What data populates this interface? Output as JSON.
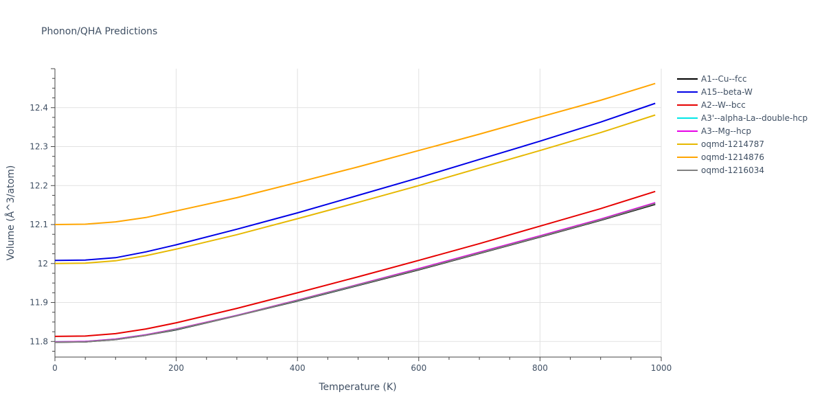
{
  "chart_data": {
    "type": "line",
    "title": "Phonon/QHA Predictions",
    "xlabel": "Temperature (K)",
    "ylabel": "Volume (Å^3/atom)",
    "xlim": [
      0,
      1000
    ],
    "ylim": [
      11.76,
      12.5
    ],
    "xticks": [
      0,
      200,
      400,
      600,
      800,
      1000
    ],
    "yticks": [
      11.8,
      11.9,
      12.0,
      12.1,
      12.2,
      12.3,
      12.4
    ],
    "xtick_labels": [
      "0",
      "200",
      "400",
      "600",
      "800",
      "1000"
    ],
    "ytick_labels": [
      "11.8",
      "11.9",
      "12",
      "12.1",
      "12.2",
      "12.3",
      "12.4"
    ],
    "grid": true,
    "legend_position": "right",
    "series": [
      {
        "name": "A1--Cu--fcc",
        "color": "#000000",
        "x": [
          0,
          50,
          100,
          150,
          200,
          300,
          400,
          500,
          600,
          700,
          800,
          900,
          990
        ],
        "y": [
          11.798,
          11.799,
          11.805,
          11.816,
          11.83,
          11.866,
          11.904,
          11.944,
          11.984,
          12.026,
          12.068,
          12.111,
          12.152
        ]
      },
      {
        "name": "A15--beta-W",
        "color": "#0000e6",
        "x": [
          0,
          50,
          100,
          150,
          200,
          300,
          400,
          500,
          600,
          700,
          800,
          900,
          990
        ],
        "y": [
          12.008,
          12.009,
          12.015,
          12.03,
          12.048,
          12.088,
          12.13,
          12.175,
          12.22,
          12.267,
          12.314,
          12.363,
          12.411
        ]
      },
      {
        "name": "A2--W--bcc",
        "color": "#e60000",
        "x": [
          0,
          50,
          100,
          150,
          200,
          300,
          400,
          500,
          600,
          700,
          800,
          900,
          990
        ],
        "y": [
          11.813,
          11.814,
          11.82,
          11.832,
          11.848,
          11.885,
          11.925,
          11.966,
          12.008,
          12.051,
          12.096,
          12.141,
          12.185
        ]
      },
      {
        "name": "A3'--alpha-La--double-hcp",
        "color": "#00e6e6",
        "x": [
          0,
          50,
          100,
          150,
          200,
          300,
          400,
          500,
          600,
          700,
          800,
          900,
          990
        ],
        "y": [
          11.799,
          11.8,
          11.806,
          11.817,
          11.831,
          11.867,
          11.905,
          11.945,
          11.986,
          12.028,
          12.07,
          12.113,
          12.155
        ]
      },
      {
        "name": "A3--Mg--hcp",
        "color": "#e600e6",
        "x": [
          0,
          50,
          100,
          150,
          200,
          300,
          400,
          500,
          600,
          700,
          800,
          900,
          990
        ],
        "y": [
          11.799,
          11.8,
          11.806,
          11.817,
          11.832,
          11.867,
          11.906,
          11.946,
          11.987,
          12.029,
          12.071,
          12.114,
          12.156
        ]
      },
      {
        "name": "oqmd-1214787",
        "color": "#e6b800",
        "x": [
          0,
          50,
          100,
          150,
          200,
          300,
          400,
          500,
          600,
          700,
          800,
          900,
          990
        ],
        "y": [
          12.0,
          12.001,
          12.007,
          12.02,
          12.037,
          12.074,
          12.115,
          12.157,
          12.2,
          12.245,
          12.29,
          12.336,
          12.381
        ]
      },
      {
        "name": "oqmd-1214876",
        "color": "#ffa500",
        "x": [
          0,
          50,
          100,
          150,
          200,
          300,
          400,
          500,
          600,
          700,
          800,
          900,
          990
        ],
        "y": [
          12.1,
          12.101,
          12.107,
          12.118,
          12.135,
          12.169,
          12.208,
          12.248,
          12.29,
          12.332,
          12.376,
          12.419,
          12.462
        ]
      },
      {
        "name": "oqmd-1216034",
        "color": "#808080",
        "x": [
          0,
          50,
          100,
          150,
          200,
          300,
          400,
          500,
          600,
          700,
          800,
          900,
          990
        ],
        "y": [
          11.798,
          11.799,
          11.805,
          11.816,
          11.831,
          11.866,
          11.905,
          11.945,
          11.985,
          12.027,
          12.069,
          12.112,
          12.154
        ]
      }
    ]
  }
}
